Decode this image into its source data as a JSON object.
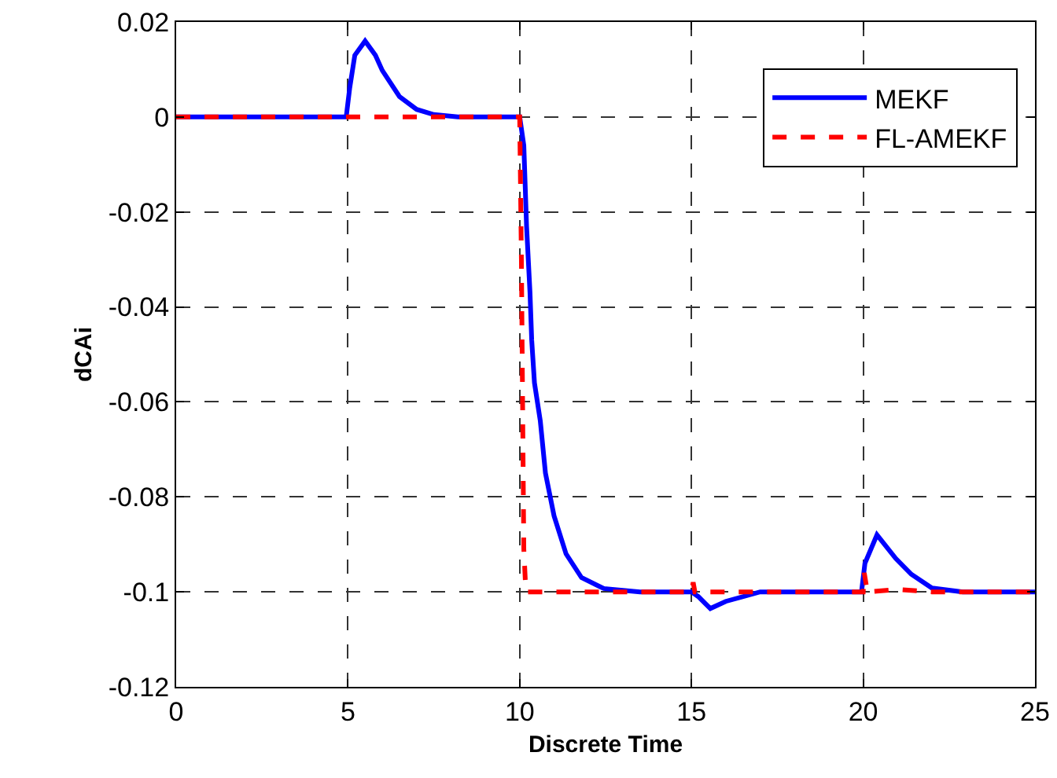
{
  "chart_data": {
    "type": "line",
    "xlabel": "Discrete Time",
    "ylabel": "dCAi",
    "xlim": [
      0,
      25
    ],
    "ylim": [
      -0.12,
      0.02
    ],
    "xticks": [
      0,
      5,
      10,
      15,
      20,
      25
    ],
    "yticks": [
      -0.12,
      -0.1,
      -0.08,
      -0.06,
      -0.04,
      -0.02,
      0,
      0.02
    ],
    "grid": true,
    "legend": "top right",
    "series": [
      {
        "name": "MEKF",
        "color": "#0000ff",
        "line_style": "solid",
        "x": [
          0,
          4.95,
          5.05,
          5.2,
          5.5,
          5.8,
          6,
          6.5,
          7,
          7.5,
          8.2,
          10,
          10.12,
          10.2,
          10.3,
          10.35,
          10.43,
          10.6,
          10.75,
          11,
          11.35,
          11.8,
          12.45,
          13.5,
          15,
          15.2,
          15.55,
          16,
          17,
          19.95,
          20.05,
          20.4,
          20.95,
          21.4,
          22,
          22.9,
          25
        ],
        "values": [
          0,
          0,
          0.006,
          0.013,
          0.016,
          0.013,
          0.0098,
          0.0043,
          0.0016,
          0.0005,
          0,
          0,
          -0.006,
          -0.023,
          -0.037,
          -0.047,
          -0.056,
          -0.064,
          -0.075,
          -0.084,
          -0.092,
          -0.097,
          -0.0993,
          -0.1,
          -0.1,
          -0.101,
          -0.1035,
          -0.102,
          -0.1,
          -0.1,
          -0.094,
          -0.088,
          -0.093,
          -0.0963,
          -0.0992,
          -0.1,
          -0.1
        ]
      },
      {
        "name": "FL-AMEKF",
        "color": "#ff0000",
        "line_style": "dashed",
        "x": [
          0,
          10,
          10.05,
          10.12,
          10.18,
          15,
          15.05,
          15.1,
          20,
          20.03,
          20.12,
          21,
          22,
          25
        ],
        "values": [
          0,
          0,
          -0.03,
          -0.091,
          -0.1,
          -0.1,
          -0.098,
          -0.1,
          -0.1,
          -0.096,
          -0.1,
          -0.0995,
          -0.1,
          -0.1
        ]
      }
    ]
  }
}
